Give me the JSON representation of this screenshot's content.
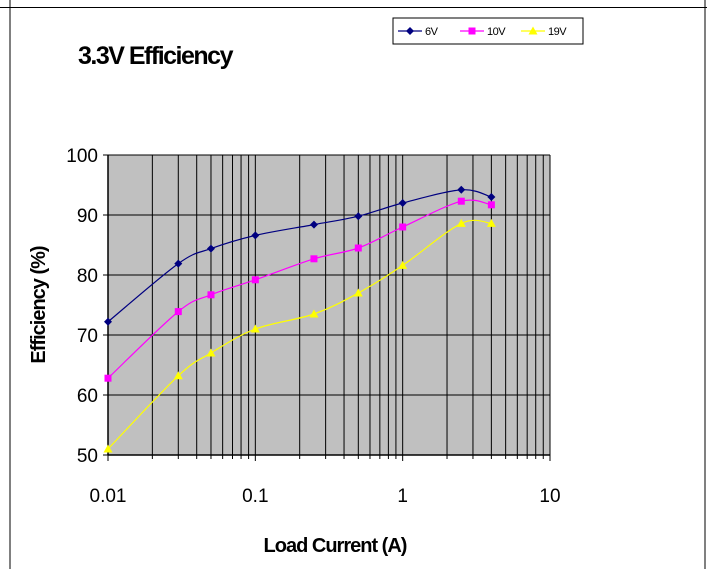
{
  "chart_data": {
    "type": "line",
    "title": "3.3V Efficiency",
    "xlabel": "Load Current (A)",
    "ylabel": "Efficiency (%)",
    "xscale": "log",
    "xlim": [
      0.01,
      10
    ],
    "ylim": [
      50,
      100
    ],
    "xticks": [
      0.01,
      0.1,
      1,
      10
    ],
    "xtick_labels": [
      "0.01",
      "0.1",
      "1",
      "10"
    ],
    "yticks": [
      50,
      60,
      70,
      80,
      90,
      100
    ],
    "ytick_labels": [
      "50",
      "60",
      "70",
      "80",
      "90",
      "100"
    ],
    "grid": true,
    "legend_position": "top-right",
    "plot_background": "#c0c0c0",
    "series": [
      {
        "name": "6V",
        "color": "#000080",
        "marker": "diamond",
        "x": [
          0.01,
          0.03,
          0.05,
          0.1,
          0.25,
          0.5,
          1,
          2.5,
          4
        ],
        "y": [
          72.2,
          81.9,
          84.4,
          86.6,
          88.4,
          89.8,
          92.0,
          94.2,
          93.0
        ]
      },
      {
        "name": "10V",
        "color": "#ff00ff",
        "marker": "square",
        "x": [
          0.01,
          0.03,
          0.05,
          0.1,
          0.25,
          0.5,
          1,
          2.5,
          4
        ],
        "y": [
          62.8,
          73.9,
          76.7,
          79.2,
          82.7,
          84.5,
          88.0,
          92.3,
          91.7
        ]
      },
      {
        "name": "19V",
        "color": "#ffff00",
        "marker": "triangle",
        "x": [
          0.01,
          0.03,
          0.05,
          0.1,
          0.25,
          0.5,
          1,
          2.5,
          4
        ],
        "y": [
          51.0,
          63.2,
          67.0,
          71.0,
          73.5,
          77.0,
          81.6,
          88.6,
          88.6
        ]
      }
    ]
  }
}
